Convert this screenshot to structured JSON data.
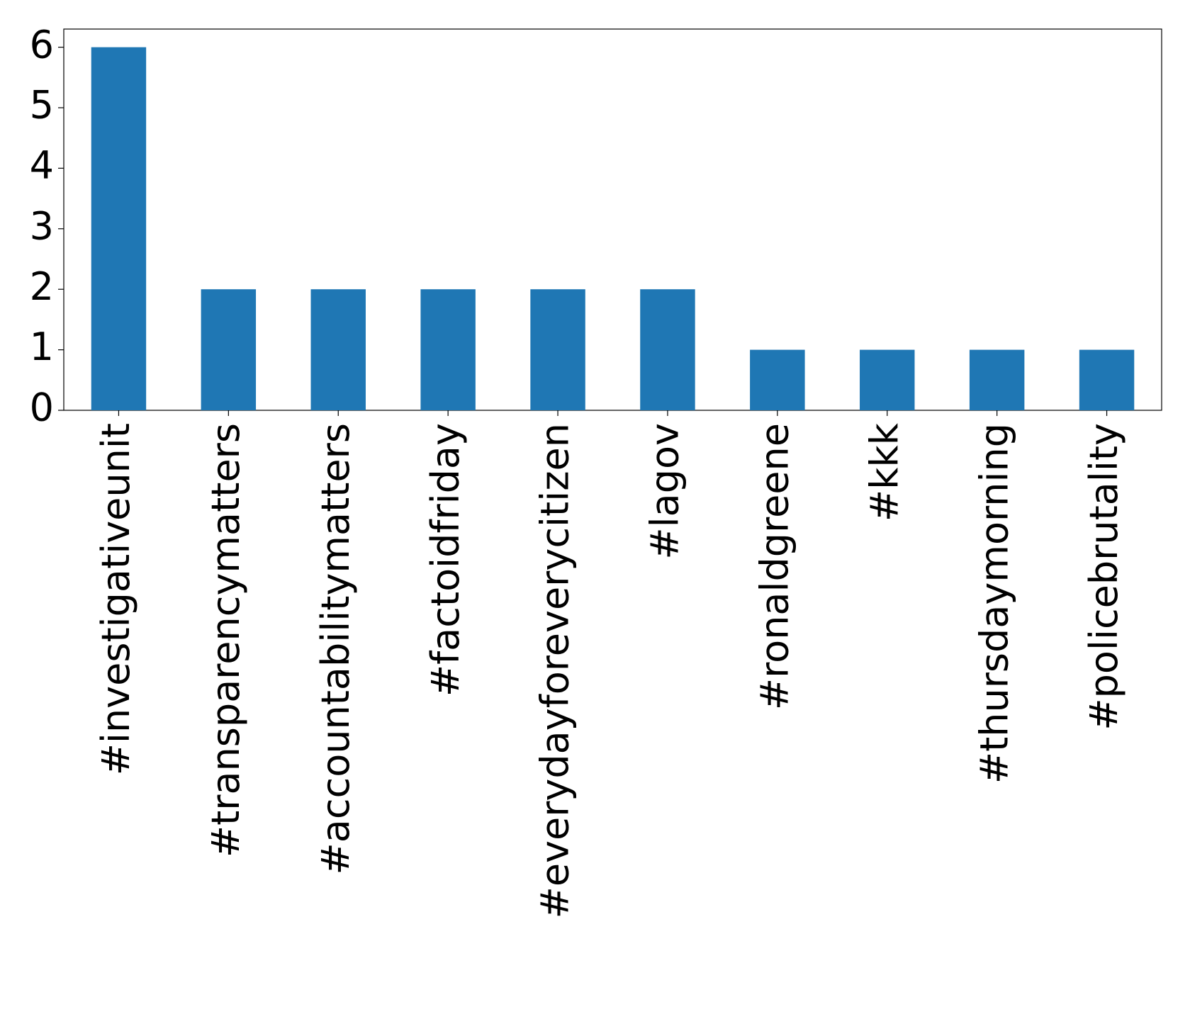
{
  "chart_data": {
    "type": "bar",
    "categories": [
      "#investigativeunit",
      "#transparencymatters",
      "#accountabilitymatters",
      "#factoidfriday",
      "#everydayforeverycitizen",
      "#lagov",
      "#ronaldgreene",
      "#kkk",
      "#thursdaymorning",
      "#policebrutality"
    ],
    "values": [
      6,
      2,
      2,
      2,
      2,
      2,
      1,
      1,
      1,
      1
    ],
    "color": "#1f77b4",
    "ylim": [
      0,
      6.3
    ],
    "yticks": [
      0,
      1,
      2,
      3,
      4,
      5,
      6
    ],
    "grid": false
  }
}
